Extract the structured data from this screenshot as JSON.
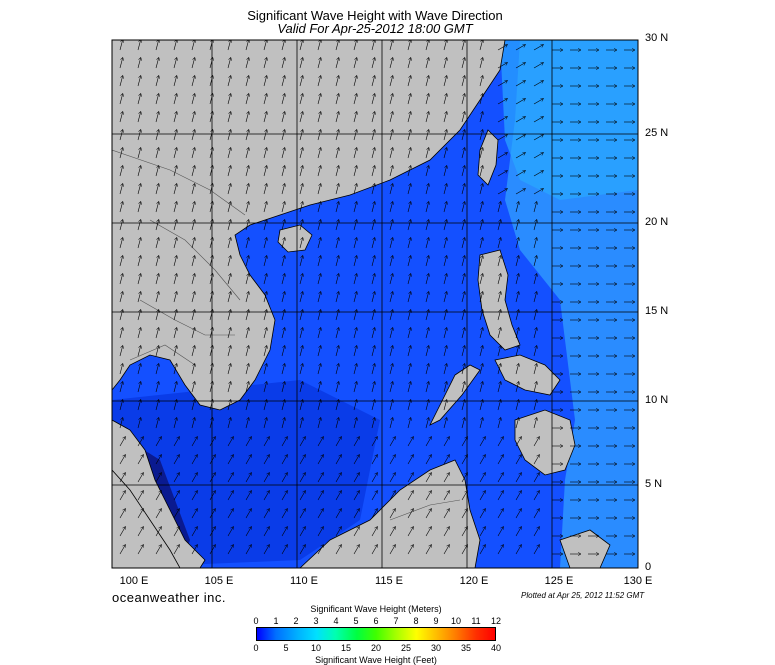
{
  "title": "Significant Wave Height with Wave Direction",
  "subtitle": "Valid For Apr-25-2012 18:00 GMT",
  "lon_labels": [
    "100 E",
    "105 E",
    "110 E",
    "115 E",
    "120 E",
    "125 E",
    "130 E"
  ],
  "lat_labels": [
    "30 N",
    "25 N",
    "20 N",
    "15 N",
    "10 N",
    "5 N",
    "0"
  ],
  "brand": "oceanweather inc.",
  "plotted": "Plotted at Apr 25, 2012 11:52 GMT",
  "legend": {
    "meters_title": "Significant Wave Height (Meters)",
    "meters_ticks": [
      "0",
      "1",
      "2",
      "3",
      "4",
      "5",
      "6",
      "7",
      "8",
      "9",
      "10",
      "11",
      "12"
    ],
    "feet_title": "Significant Wave Height (Feet)",
    "feet_ticks": [
      "0",
      "5",
      "10",
      "15",
      "20",
      "25",
      "30",
      "35",
      "40"
    ]
  },
  "colors": {
    "land": "#c0c0c0",
    "sea_deep": "#0a3cf0",
    "sea_mid": "#1450ff",
    "sea_light": "#2a9cff"
  }
}
